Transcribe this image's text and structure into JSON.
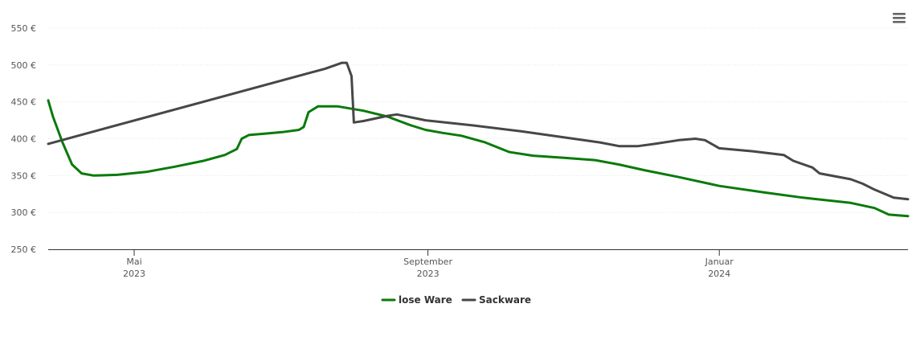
{
  "colors": {
    "lose_ware": "#0a7a0a",
    "sackware": "#474747",
    "grid": "#e6e6e6",
    "axis": "#333333"
  },
  "menu": {
    "icon": "hamburger-menu-icon"
  },
  "chart_data": {
    "type": "line",
    "title": "",
    "xlabel": "",
    "ylabel": "",
    "ylim": [
      250,
      550
    ],
    "y_ticks": [
      {
        "value": 550,
        "label": "550 €"
      },
      {
        "value": 500,
        "label": "500 €"
      },
      {
        "value": 450,
        "label": "450 €"
      },
      {
        "value": 400,
        "label": "400 €"
      },
      {
        "value": 350,
        "label": "350 €"
      },
      {
        "value": 300,
        "label": "300 €"
      },
      {
        "value": 250,
        "label": "250 €"
      }
    ],
    "xlim": [
      "2023-03-26",
      "2024-03-20"
    ],
    "x_ticks": [
      {
        "date": "2023-05-01",
        "label1": "Mai",
        "label2": "2023"
      },
      {
        "date": "2023-09-01",
        "label1": "September",
        "label2": "2023"
      },
      {
        "date": "2024-01-01",
        "label1": "Januar",
        "label2": "2024"
      }
    ],
    "grid": "horizontal",
    "legend_position": "bottom-center",
    "series": [
      {
        "name": "lose Ware",
        "color": "#0a7a0a",
        "points": [
          [
            "2023-03-26",
            452
          ],
          [
            "2023-03-28",
            430
          ],
          [
            "2023-04-01",
            395
          ],
          [
            "2023-04-05",
            365
          ],
          [
            "2023-04-09",
            353
          ],
          [
            "2023-04-14",
            350
          ],
          [
            "2023-04-24",
            351
          ],
          [
            "2023-05-06",
            355
          ],
          [
            "2023-05-18",
            362
          ],
          [
            "2023-05-30",
            370
          ],
          [
            "2023-06-08",
            378
          ],
          [
            "2023-06-13",
            386
          ],
          [
            "2023-06-15",
            400
          ],
          [
            "2023-06-18",
            405
          ],
          [
            "2023-06-25",
            407
          ],
          [
            "2023-07-02",
            409
          ],
          [
            "2023-07-09",
            412
          ],
          [
            "2023-07-11",
            416
          ],
          [
            "2023-07-13",
            436
          ],
          [
            "2023-07-17",
            444
          ],
          [
            "2023-07-25",
            444
          ],
          [
            "2023-08-05",
            438
          ],
          [
            "2023-08-15",
            430
          ],
          [
            "2023-08-25",
            418
          ],
          [
            "2023-08-31",
            412
          ],
          [
            "2023-09-07",
            408
          ],
          [
            "2023-09-15",
            404
          ],
          [
            "2023-09-25",
            395
          ],
          [
            "2023-10-05",
            382
          ],
          [
            "2023-10-15",
            377
          ],
          [
            "2023-10-28",
            374
          ],
          [
            "2023-11-10",
            371
          ],
          [
            "2023-11-20",
            365
          ],
          [
            "2023-12-01",
            357
          ],
          [
            "2023-12-15",
            348
          ],
          [
            "2024-01-01",
            336
          ],
          [
            "2024-01-20",
            327
          ],
          [
            "2024-02-05",
            320
          ],
          [
            "2024-02-25",
            313
          ],
          [
            "2024-03-06",
            306
          ],
          [
            "2024-03-12",
            297
          ],
          [
            "2024-03-20",
            295
          ]
        ]
      },
      {
        "name": "Sackware",
        "color": "#474747",
        "points": [
          [
            "2023-03-26",
            393
          ],
          [
            "2023-07-20",
            495
          ],
          [
            "2023-07-27",
            503
          ],
          [
            "2023-07-29",
            503
          ],
          [
            "2023-07-31",
            485
          ],
          [
            "2023-08-01",
            422
          ],
          [
            "2023-08-05",
            424
          ],
          [
            "2023-08-15",
            431
          ],
          [
            "2023-08-19",
            433
          ],
          [
            "2023-08-31",
            425
          ],
          [
            "2023-09-20",
            418
          ],
          [
            "2023-10-10",
            410
          ],
          [
            "2023-11-01",
            400
          ],
          [
            "2023-11-12",
            395
          ],
          [
            "2023-11-20",
            390
          ],
          [
            "2023-11-28",
            390
          ],
          [
            "2023-12-05",
            393
          ],
          [
            "2023-12-15",
            398
          ],
          [
            "2023-12-22",
            400
          ],
          [
            "2023-12-26",
            398
          ],
          [
            "2024-01-01",
            387
          ],
          [
            "2024-01-15",
            383
          ],
          [
            "2024-01-28",
            378
          ],
          [
            "2024-02-01",
            370
          ],
          [
            "2024-02-09",
            361
          ],
          [
            "2024-02-12",
            353
          ],
          [
            "2024-02-25",
            345
          ],
          [
            "2024-03-01",
            339
          ],
          [
            "2024-03-06",
            331
          ],
          [
            "2024-03-14",
            320
          ],
          [
            "2024-03-20",
            318
          ]
        ]
      }
    ]
  }
}
